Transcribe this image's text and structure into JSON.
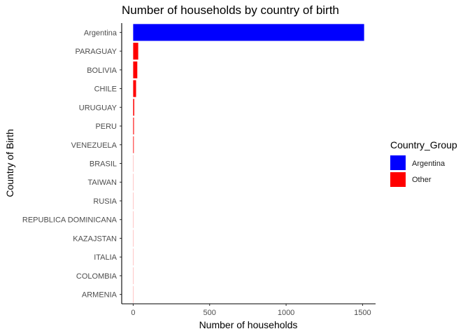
{
  "chart_data": {
    "type": "bar",
    "orientation": "horizontal",
    "title": "Number of households by country of birth",
    "xlabel": "Number of households",
    "ylabel": "Country of Birth",
    "categories": [
      "Argentina",
      "PARAGUAY",
      "BOLIVIA",
      "CHILE",
      "URUGUAY",
      "PERU",
      "VENEZUELA",
      "BRASIL",
      "TAIWAN",
      "RUSIA",
      "REPUBLICA DOMINICANA",
      "KAZAJSTAN",
      "ITALIA",
      "COLOMBIA",
      "ARMENIA"
    ],
    "values": [
      1510,
      33,
      27,
      19,
      7,
      5,
      4,
      1,
      1,
      1,
      1,
      1,
      1,
      1,
      1
    ],
    "groups": [
      "Argentina",
      "Other",
      "Other",
      "Other",
      "Other",
      "Other",
      "Other",
      "Other",
      "Other",
      "Other",
      "Other",
      "Other",
      "Other",
      "Other",
      "Other"
    ],
    "xlim": [
      -75,
      1585
    ],
    "xticks": [
      0,
      500,
      1000,
      1500
    ],
    "grid": false,
    "legend": {
      "title": "Country_Group",
      "position": "right",
      "entries": [
        {
          "name": "Argentina",
          "color": "#0000FF"
        },
        {
          "name": "Other",
          "color": "#FF0000"
        }
      ]
    }
  }
}
